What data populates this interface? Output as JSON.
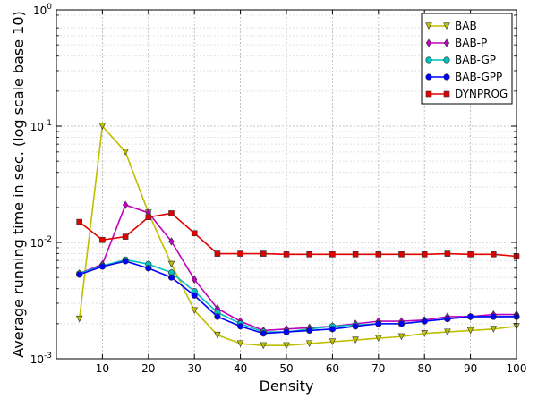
{
  "chart_data": {
    "type": "line",
    "title": "",
    "xlabel": "Density",
    "ylabel": "Average running time in sec. (log scale base 10)",
    "xlim": [
      0,
      100
    ],
    "ylim": [
      0.001,
      1
    ],
    "yscale": "log",
    "grid": true,
    "legend_position": "top-right",
    "x_ticks": [
      10,
      20,
      30,
      40,
      50,
      60,
      70,
      80,
      90,
      100
    ],
    "y_ticks": [
      {
        "value": 0.001,
        "base": "10",
        "exp": "-3"
      },
      {
        "value": 0.01,
        "base": "10",
        "exp": "-2"
      },
      {
        "value": 0.1,
        "base": "10",
        "exp": "-1"
      },
      {
        "value": 1,
        "base": "10",
        "exp": "0"
      }
    ],
    "x": [
      5,
      10,
      15,
      20,
      25,
      30,
      35,
      40,
      45,
      50,
      55,
      60,
      65,
      70,
      75,
      80,
      85,
      90,
      95,
      100
    ],
    "series": [
      {
        "name": "BAB",
        "color": "#bfbf00",
        "marker": "triangle-down",
        "values": [
          0.0022,
          0.1,
          0.06,
          0.018,
          0.0065,
          0.0026,
          0.0016,
          0.00135,
          0.0013,
          0.0013,
          0.00135,
          0.0014,
          0.00145,
          0.0015,
          0.00155,
          0.00165,
          0.0017,
          0.00175,
          0.0018,
          0.0019
        ]
      },
      {
        "name": "BAB-P",
        "color": "#bf00bf",
        "marker": "diamond",
        "values": [
          0.0054,
          0.0065,
          0.021,
          0.018,
          0.0102,
          0.0048,
          0.0027,
          0.0021,
          0.00175,
          0.0018,
          0.00185,
          0.0019,
          0.002,
          0.0021,
          0.0021,
          0.00215,
          0.0023,
          0.0023,
          0.0024,
          0.0024
        ]
      },
      {
        "name": "BAB-GP",
        "color": "#00bfbf",
        "marker": "circle",
        "values": [
          0.0054,
          0.0063,
          0.0071,
          0.0065,
          0.0055,
          0.0038,
          0.0025,
          0.002,
          0.0017,
          0.0017,
          0.0018,
          0.0019,
          0.00195,
          0.002,
          0.002,
          0.0021,
          0.0022,
          0.0023,
          0.0023,
          0.0023
        ]
      },
      {
        "name": "BAB-GPP",
        "color": "#0000ff",
        "marker": "circle",
        "values": [
          0.0053,
          0.0062,
          0.0069,
          0.006,
          0.005,
          0.0035,
          0.0023,
          0.0019,
          0.00165,
          0.0017,
          0.00175,
          0.0018,
          0.0019,
          0.002,
          0.002,
          0.0021,
          0.0022,
          0.0023,
          0.0023,
          0.0023
        ]
      },
      {
        "name": "DYNPROG",
        "color": "#e00000",
        "marker": "square",
        "values": [
          0.015,
          0.0105,
          0.0112,
          0.0165,
          0.0178,
          0.012,
          0.008,
          0.008,
          0.008,
          0.0079,
          0.0079,
          0.0079,
          0.0079,
          0.0079,
          0.0079,
          0.0079,
          0.008,
          0.0079,
          0.0079,
          0.0076
        ]
      }
    ]
  }
}
